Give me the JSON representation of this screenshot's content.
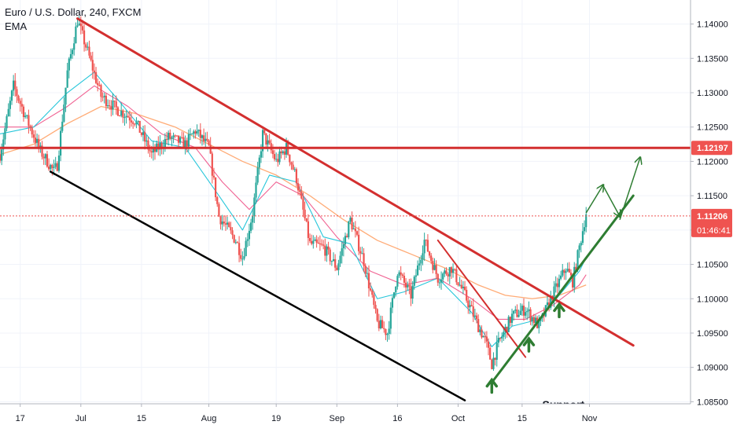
{
  "header": {
    "symbol_title": "Euro / U.S. Dollar, 240, FXCM",
    "indicator": "EMA"
  },
  "colors": {
    "up": "#26a69a",
    "down": "#ef5350",
    "trendline_red": "#d32f2f",
    "channel_black": "#000000",
    "support_green": "#2e7d32",
    "ema_fast": "#26c6da",
    "ema_mid": "#f06292",
    "ema_slow": "#ffab76",
    "price_tag_bg": "#ef5350",
    "axis_text": "#131722",
    "grid": "#f0f3fa"
  },
  "chart_data": {
    "type": "candlestick",
    "title": "Euro / U.S. Dollar, 240, FXCM",
    "x_ticks": [
      "17",
      "Jul",
      "15",
      "Aug",
      "19",
      "Sep",
      "16",
      "Oct",
      "15",
      "Nov"
    ],
    "y_ticks": [
      1.14,
      1.135,
      1.13,
      1.125,
      1.12,
      1.115,
      1.11,
      1.105,
      1.1,
      1.095,
      1.09,
      1.085
    ],
    "y_tick_labels": [
      "1.14000",
      "1.13500",
      "1.13000",
      "1.12500",
      "1.12000",
      "1.11500",
      "1.11000",
      "1.10500",
      "1.10000",
      "1.09500",
      "1.09000",
      "1.08500"
    ],
    "ylim": [
      1.0847,
      1.1435
    ],
    "resistance_level": 1.12197,
    "resistance_label": "1.12197",
    "last_price": 1.11206,
    "last_price_label": "1.11206",
    "countdown_label": "01:46:41",
    "annotation": "Support",
    "price_path": [
      [
        0,
        1.121
      ],
      [
        4,
        1.131
      ],
      [
        8,
        1.126
      ],
      [
        12,
        1.1215
      ],
      [
        16,
        1.1185
      ],
      [
        17,
        1.1195
      ],
      [
        20,
        1.133
      ],
      [
        23,
        1.1405
      ],
      [
        26,
        1.136
      ],
      [
        30,
        1.1295
      ],
      [
        35,
        1.1275
      ],
      [
        40,
        1.126
      ],
      [
        45,
        1.121
      ],
      [
        50,
        1.1235
      ],
      [
        55,
        1.1225
      ],
      [
        58,
        1.1245
      ],
      [
        62,
        1.122
      ],
      [
        65,
        1.112
      ],
      [
        70,
        1.1085
      ],
      [
        72,
        1.106
      ],
      [
        75,
        1.1125
      ],
      [
        78,
        1.124
      ],
      [
        82,
        1.12
      ],
      [
        85,
        1.122
      ],
      [
        88,
        1.1175
      ],
      [
        92,
        1.108
      ],
      [
        96,
        1.1075
      ],
      [
        100,
        1.1045
      ],
      [
        104,
        1.1115
      ],
      [
        108,
        1.1055
      ],
      [
        112,
        1.0965
      ],
      [
        115,
        1.095
      ],
      [
        118,
        1.104
      ],
      [
        122,
        1.1005
      ],
      [
        126,
        1.1085
      ],
      [
        130,
        1.103
      ],
      [
        134,
        1.1045
      ],
      [
        138,
        1.1005
      ],
      [
        142,
        1.096
      ],
      [
        144,
        1.094
      ],
      [
        146,
        1.0905
      ],
      [
        148,
        1.0935
      ],
      [
        152,
        1.0975
      ],
      [
        156,
        1.0985
      ],
      [
        160,
        1.096
      ],
      [
        164,
        1.1005
      ],
      [
        168,
        1.1045
      ],
      [
        170,
        1.1025
      ],
      [
        172,
        1.1075
      ],
      [
        174,
        1.1125
      ]
    ],
    "x_total": 205,
    "x_tick_positions": [
      6,
      24,
      42,
      62,
      82,
      100,
      118,
      136,
      155,
      175
    ],
    "ema_fast_path": [
      [
        0,
        1.124
      ],
      [
        10,
        1.125
      ],
      [
        20,
        1.13
      ],
      [
        28,
        1.133
      ],
      [
        35,
        1.129
      ],
      [
        45,
        1.123
      ],
      [
        55,
        1.122
      ],
      [
        65,
        1.115
      ],
      [
        72,
        1.11
      ],
      [
        80,
        1.118
      ],
      [
        88,
        1.117
      ],
      [
        96,
        1.109
      ],
      [
        104,
        1.108
      ],
      [
        112,
        1.1
      ],
      [
        120,
        1.101
      ],
      [
        130,
        1.103
      ],
      [
        140,
        1.098
      ],
      [
        146,
        1.093
      ],
      [
        152,
        1.096
      ],
      [
        160,
        1.097
      ],
      [
        166,
        1.1005
      ],
      [
        172,
        1.104
      ],
      [
        174,
        1.106
      ]
    ],
    "ema_mid_path": [
      [
        0,
        1.125
      ],
      [
        10,
        1.125
      ],
      [
        20,
        1.128
      ],
      [
        28,
        1.131
      ],
      [
        38,
        1.128
      ],
      [
        48,
        1.124
      ],
      [
        58,
        1.122
      ],
      [
        66,
        1.117
      ],
      [
        74,
        1.113
      ],
      [
        82,
        1.117
      ],
      [
        90,
        1.115
      ],
      [
        100,
        1.109
      ],
      [
        110,
        1.104
      ],
      [
        120,
        1.102
      ],
      [
        130,
        1.103
      ],
      [
        140,
        1.1
      ],
      [
        148,
        1.097
      ],
      [
        156,
        1.097
      ],
      [
        164,
        1.099
      ],
      [
        172,
        1.102
      ],
      [
        174,
        1.1035
      ]
    ],
    "ema_slow_path": [
      [
        0,
        1.121
      ],
      [
        10,
        1.1225
      ],
      [
        20,
        1.1255
      ],
      [
        30,
        1.128
      ],
      [
        40,
        1.127
      ],
      [
        52,
        1.125
      ],
      [
        62,
        1.1225
      ],
      [
        72,
        1.12
      ],
      [
        82,
        1.118
      ],
      [
        92,
        1.115
      ],
      [
        102,
        1.1115
      ],
      [
        112,
        1.1085
      ],
      [
        122,
        1.1065
      ],
      [
        132,
        1.1045
      ],
      [
        142,
        1.102
      ],
      [
        150,
        1.1005
      ],
      [
        158,
        1.1
      ],
      [
        166,
        1.1005
      ],
      [
        174,
        1.102
      ]
    ],
    "trendline_main": [
      [
        23,
        1.1408
      ],
      [
        188,
        1.0932
      ]
    ],
    "trendline_short": [
      [
        130,
        1.1085
      ],
      [
        156,
        1.0915
      ]
    ],
    "channel_lower": [
      [
        15,
        1.1185
      ],
      [
        138,
        1.0852
      ]
    ],
    "support_line": [
      [
        146,
        1.0878
      ],
      [
        188,
        1.115
      ]
    ],
    "projection_arrows": [
      [
        [
          174,
          1.1125
        ],
        [
          179,
          1.1165
        ]
      ],
      [
        [
          179,
          1.1165
        ],
        [
          184,
          1.112
        ]
      ],
      [
        [
          184,
          1.1115
        ],
        [
          190,
          1.1205
        ]
      ]
    ],
    "support_markers": [
      [
        146,
        1.0875
      ],
      [
        157,
        1.0935
      ],
      [
        166,
        1.0985
      ]
    ]
  }
}
